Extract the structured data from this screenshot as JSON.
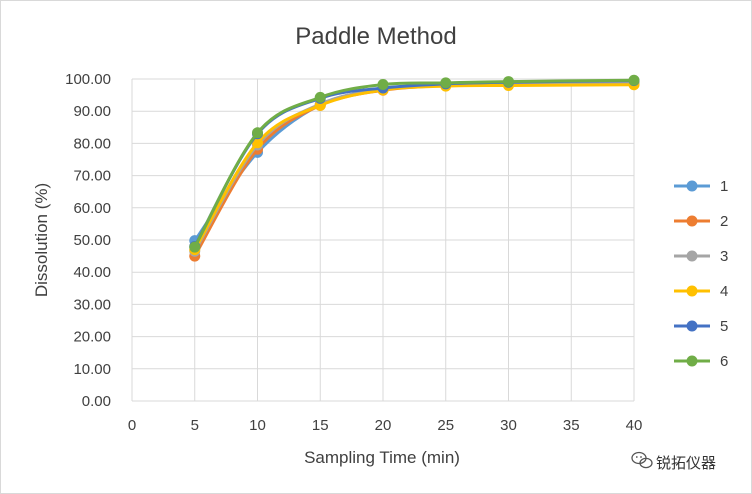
{
  "chart_data": {
    "type": "line",
    "title": "Paddle Method",
    "xlabel": "Sampling Time (min)",
    "ylabel": "Dissolution (%)",
    "xlim": [
      0,
      40
    ],
    "ylim": [
      0,
      100
    ],
    "x_ticks": [
      "0",
      "5",
      "10",
      "15",
      "20",
      "25",
      "30",
      "35",
      "40"
    ],
    "y_ticks": [
      "0.00",
      "10.00",
      "20.00",
      "30.00",
      "40.00",
      "50.00",
      "60.00",
      "70.00",
      "80.00",
      "90.00",
      "100.00"
    ],
    "grid": true,
    "legend_position": "right",
    "x": [
      5,
      10,
      15,
      20,
      25,
      30,
      40
    ],
    "series": [
      {
        "name": "1",
        "color": "#5B9BD5",
        "values": [
          49.8,
          77.2,
          92.0,
          96.8,
          98.2,
          98.8,
          99.2
        ]
      },
      {
        "name": "2",
        "color": "#ED7D31",
        "values": [
          45.0,
          78.2,
          91.8,
          96.5,
          98.0,
          98.8,
          99.0
        ]
      },
      {
        "name": "3",
        "color": "#A5A5A5",
        "values": [
          46.5,
          79.5,
          92.2,
          96.8,
          98.0,
          98.5,
          98.8
        ]
      },
      {
        "name": "4",
        "color": "#FFC000",
        "values": [
          47.0,
          80.2,
          91.8,
          96.6,
          97.8,
          98.0,
          98.2
        ]
      },
      {
        "name": "5",
        "color": "#4472C4",
        "values": [
          48.0,
          83.0,
          94.0,
          97.2,
          98.5,
          99.0,
          99.5
        ]
      },
      {
        "name": "6",
        "color": "#70AD47",
        "values": [
          47.8,
          83.3,
          94.3,
          98.3,
          98.8,
          99.2,
          99.6
        ]
      }
    ]
  },
  "watermark": {
    "text": "锐拓仪器",
    "icon": "wechat-icon"
  }
}
